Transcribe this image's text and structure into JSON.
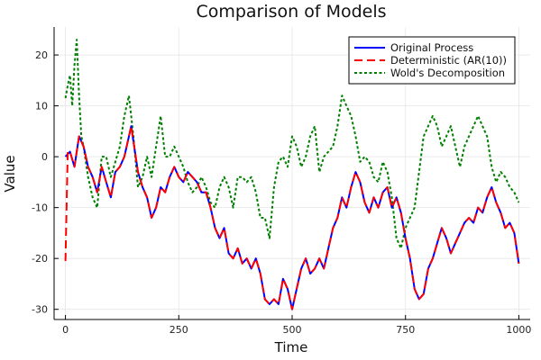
{
  "chart_data": {
    "type": "line",
    "title": "Comparison of Models",
    "xlabel": "Time",
    "ylabel": "Value",
    "xlim": [
      -25,
      1025
    ],
    "ylim": [
      -32,
      25.5
    ],
    "xticks": [
      0,
      250,
      500,
      750,
      1000
    ],
    "yticks": [
      -30,
      -20,
      -10,
      0,
      10,
      20
    ],
    "grid": true,
    "legend_position": "top-right",
    "series": [
      {
        "name": "Original Process",
        "color": "#0000ff",
        "style": "solid",
        "x": [
          0,
          10,
          20,
          25,
          30,
          40,
          50,
          60,
          70,
          80,
          90,
          100,
          110,
          120,
          130,
          140,
          145,
          150,
          160,
          170,
          180,
          190,
          200,
          210,
          220,
          230,
          240,
          250,
          260,
          270,
          280,
          290,
          300,
          310,
          320,
          330,
          340,
          350,
          360,
          370,
          380,
          390,
          400,
          410,
          420,
          430,
          440,
          450,
          460,
          470,
          480,
          490,
          500,
          510,
          520,
          530,
          540,
          550,
          560,
          570,
          580,
          590,
          600,
          610,
          620,
          630,
          640,
          650,
          660,
          670,
          680,
          690,
          700,
          710,
          720,
          730,
          740,
          750,
          760,
          770,
          780,
          790,
          800,
          810,
          820,
          830,
          840,
          850,
          860,
          870,
          880,
          890,
          900,
          910,
          920,
          930,
          940,
          950,
          960,
          970,
          980,
          990,
          1000
        ],
        "y": [
          0,
          1,
          -2,
          1,
          4,
          2,
          -2,
          -4,
          -7,
          -2,
          -5,
          -8,
          -3,
          -2,
          0,
          4,
          6,
          3,
          -3,
          -6,
          -8,
          -12,
          -10,
          -6,
          -7,
          -4,
          -2,
          -4,
          -5,
          -3,
          -4,
          -5,
          -7,
          -7,
          -10,
          -14,
          -16,
          -14,
          -19,
          -20,
          -18,
          -21,
          -20,
          -22,
          -20,
          -23,
          -28,
          -29,
          -28,
          -29,
          -24,
          -26,
          -30,
          -26,
          -22,
          -20,
          -23,
          -22,
          -20,
          -22,
          -18,
          -14,
          -12,
          -8,
          -10,
          -6,
          -3,
          -5,
          -9,
          -11,
          -8,
          -10,
          -7,
          -6,
          -10,
          -8,
          -11,
          -16,
          -20,
          -26,
          -28,
          -27,
          -22,
          -20,
          -17,
          -14,
          -16,
          -19,
          -17,
          -15,
          -13,
          -12,
          -13,
          -10,
          -11,
          -8,
          -6,
          -9,
          -11,
          -14,
          -13,
          -15,
          -21
        ]
      },
      {
        "name": "Deterministic (AR(10))",
        "color": "#ff0000",
        "style": "dashed",
        "x": [
          0,
          5,
          10,
          20,
          25,
          30,
          40,
          50,
          60,
          70,
          80,
          90,
          100,
          110,
          120,
          130,
          140,
          145,
          150,
          160,
          170,
          180,
          190,
          200,
          210,
          220,
          230,
          240,
          250,
          260,
          270,
          280,
          290,
          300,
          310,
          320,
          330,
          340,
          350,
          360,
          370,
          380,
          390,
          400,
          410,
          420,
          430,
          440,
          450,
          460,
          470,
          480,
          490,
          500,
          510,
          520,
          530,
          540,
          550,
          560,
          570,
          580,
          590,
          600,
          610,
          620,
          630,
          640,
          650,
          660,
          670,
          680,
          690,
          700,
          710,
          720,
          730,
          740,
          750,
          760,
          770,
          780,
          790,
          800,
          810,
          820,
          830,
          840,
          850,
          860,
          870,
          880,
          890,
          900,
          910,
          920,
          930,
          940,
          950,
          960,
          970,
          980,
          990,
          1000
        ],
        "y": [
          -20.5,
          1,
          1,
          -2,
          1,
          4,
          2,
          -2,
          -4,
          -7,
          -2,
          -5,
          -8,
          -3,
          -2,
          0,
          4,
          6,
          3,
          -3,
          -6,
          -8,
          -12,
          -10,
          -6,
          -7,
          -4,
          -2,
          -4,
          -5,
          -3,
          -4,
          -5,
          -7,
          -7,
          -10,
          -14,
          -16,
          -14,
          -19,
          -20,
          -18,
          -21,
          -20,
          -22,
          -20,
          -23,
          -28,
          -29,
          -28,
          -29,
          -24,
          -26,
          -30,
          -26,
          -22,
          -20,
          -23,
          -22,
          -20,
          -22,
          -18,
          -14,
          -12,
          -8,
          -10,
          -6,
          -3,
          -5,
          -9,
          -11,
          -8,
          -10,
          -7,
          -6,
          -10,
          -8,
          -11,
          -16,
          -20,
          -26,
          -28,
          -27,
          -22,
          -20,
          -17,
          -14,
          -16,
          -19,
          -17,
          -15,
          -13,
          -12,
          -13,
          -10,
          -11,
          -8,
          -6,
          -9,
          -11,
          -14,
          -13,
          -15,
          -21
        ]
      },
      {
        "name": "Wold's Decomposition",
        "color": "#008000",
        "style": "dotted",
        "x": [
          0,
          5,
          10,
          15,
          20,
          25,
          30,
          35,
          40,
          45,
          50,
          60,
          70,
          80,
          90,
          100,
          110,
          120,
          130,
          140,
          145,
          150,
          160,
          170,
          180,
          190,
          200,
          210,
          220,
          230,
          240,
          250,
          260,
          270,
          280,
          290,
          300,
          310,
          320,
          330,
          340,
          350,
          360,
          370,
          380,
          390,
          400,
          410,
          420,
          430,
          440,
          450,
          460,
          470,
          480,
          490,
          500,
          510,
          520,
          530,
          540,
          550,
          560,
          570,
          580,
          590,
          600,
          610,
          620,
          630,
          640,
          650,
          660,
          670,
          680,
          690,
          700,
          710,
          720,
          730,
          740,
          750,
          760,
          770,
          780,
          790,
          800,
          810,
          820,
          830,
          840,
          850,
          860,
          870,
          880,
          890,
          900,
          910,
          920,
          930,
          940,
          950,
          960,
          970,
          980,
          990,
          1000
        ],
        "y": [
          11.5,
          14,
          16,
          10,
          18,
          23,
          12,
          4,
          2,
          -1,
          -4,
          -8,
          -10,
          0,
          0,
          -4,
          -1,
          2,
          8,
          12,
          8,
          4,
          -6,
          -4,
          0,
          -4,
          2,
          8,
          0,
          0,
          2,
          0,
          -2,
          -5,
          -7,
          -6,
          -4,
          -6,
          -9,
          -10,
          -6,
          -4,
          -6,
          -10,
          -4,
          -4,
          -5,
          -4,
          -7,
          -12,
          -12,
          -16,
          -6,
          -1,
          0,
          -2,
          4,
          2,
          -2,
          0,
          4,
          6,
          -3,
          0,
          1,
          2,
          6,
          12,
          10,
          8,
          4,
          -1,
          0,
          -1,
          -4,
          -5,
          -1,
          -3,
          -8,
          -16,
          -18,
          -14,
          -12,
          -10,
          -3,
          4,
          6,
          8,
          6,
          2,
          4,
          6,
          2,
          -2,
          2,
          4,
          6,
          8,
          6,
          4,
          -2,
          -5,
          -3,
          -4,
          -6,
          -7,
          -9
        ]
      }
    ]
  }
}
